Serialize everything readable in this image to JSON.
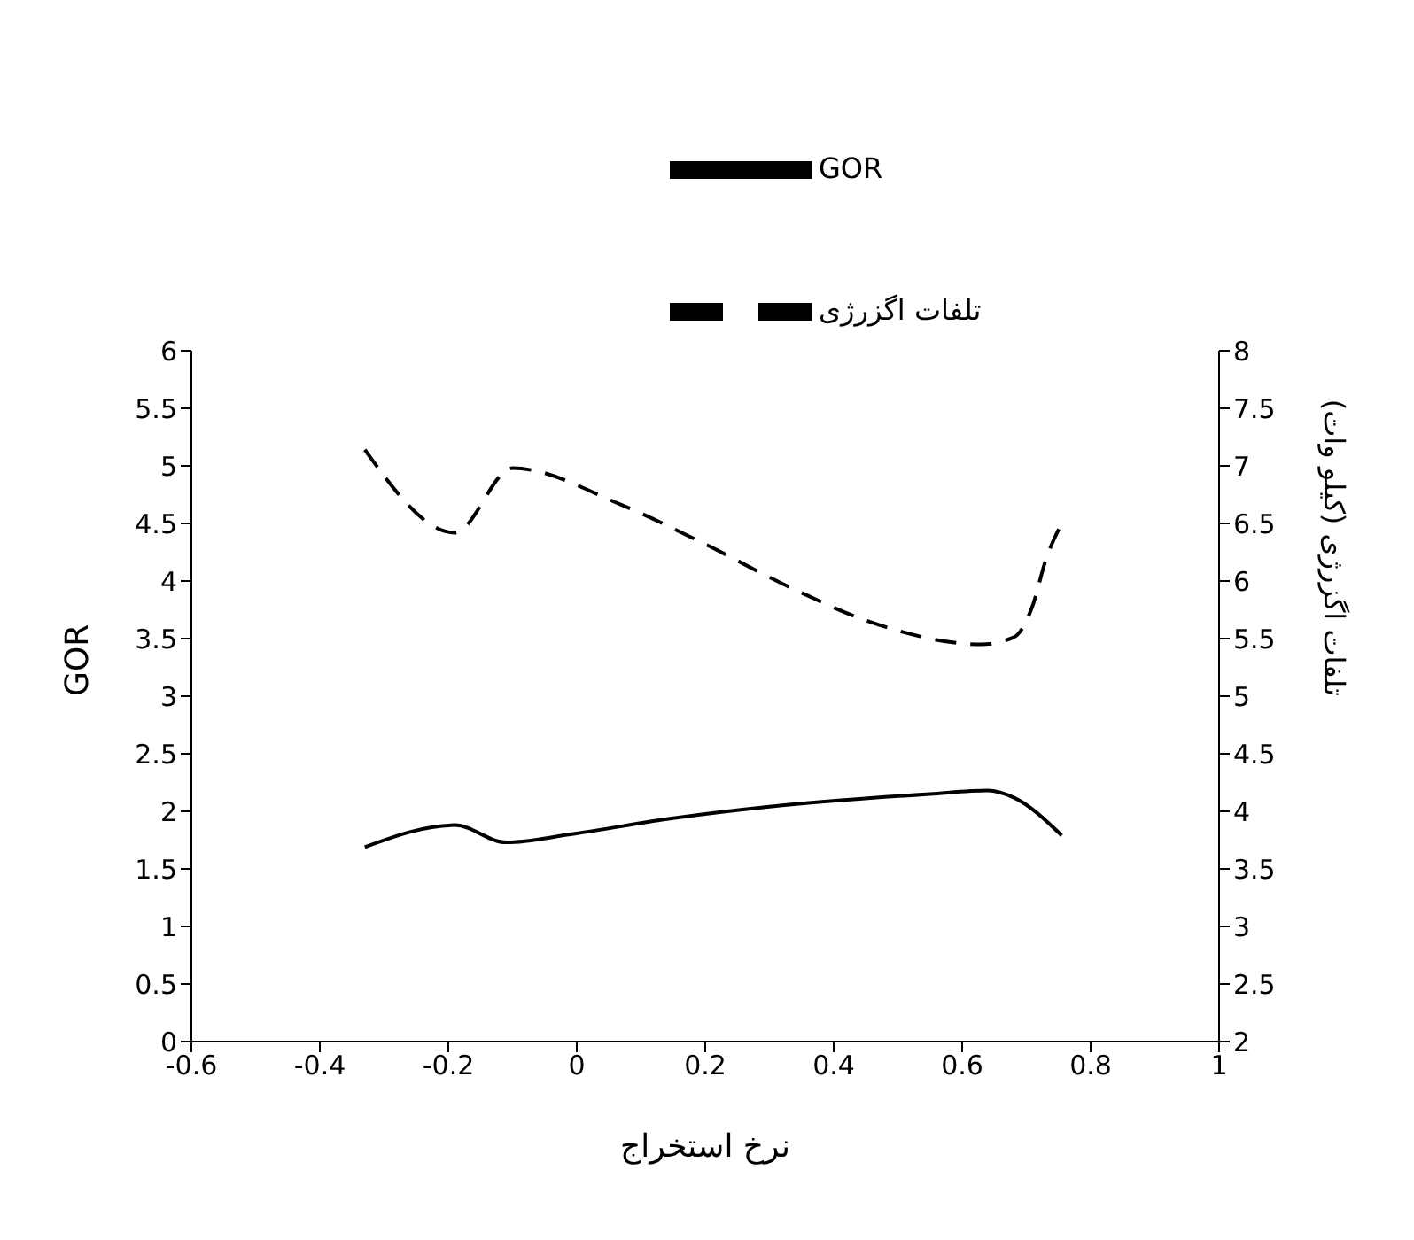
{
  "chart_data": {
    "type": "line",
    "xlabel": "نرخ استخراج",
    "ylabel": "GOR",
    "y2label": "تلفات اگزرژی (کیلو وات)",
    "xlim": [
      -0.6,
      1
    ],
    "xticks": [
      -0.6,
      -0.4,
      -0.2,
      0,
      0.2,
      0.4,
      0.6,
      0.8,
      1
    ],
    "ylim": [
      0,
      6
    ],
    "yticks": [
      0,
      0.5,
      1,
      1.5,
      2,
      2.5,
      3,
      3.5,
      4,
      4.5,
      5,
      5.5,
      6
    ],
    "y2lim": [
      2,
      8
    ],
    "y2ticks": [
      2,
      2.5,
      3,
      3.5,
      4,
      4.5,
      5,
      5.5,
      6,
      6.5,
      7,
      7.5,
      8
    ],
    "grid": false,
    "legend": "top",
    "marker": "none",
    "series": [
      {
        "name": "GOR",
        "color": "#000000",
        "line_style": "solid",
        "x": [
          -0.33,
          -0.19,
          -0.11,
          -0.01,
          0.15,
          0.3,
          0.55,
          0.64,
          0.68,
          0.755
        ],
        "values": [
          1.69,
          1.88,
          1.73,
          1.8,
          1.94,
          2.04,
          2.15,
          2.18,
          2.12,
          1.79
        ]
      },
      {
        "name": "تلفات اگزرژی",
        "color": "#000000",
        "line_style": "dashed",
        "axis": "y2",
        "x": [
          -0.33,
          -0.19,
          -0.1,
          0.07,
          0.2,
          0.33,
          0.47,
          0.63,
          0.68,
          0.71,
          0.73,
          0.755
        ],
        "values": [
          7.14,
          6.42,
          6.98,
          6.66,
          6.32,
          5.95,
          5.62,
          5.45,
          5.51,
          5.79,
          6.18,
          6.5
        ]
      }
    ]
  }
}
